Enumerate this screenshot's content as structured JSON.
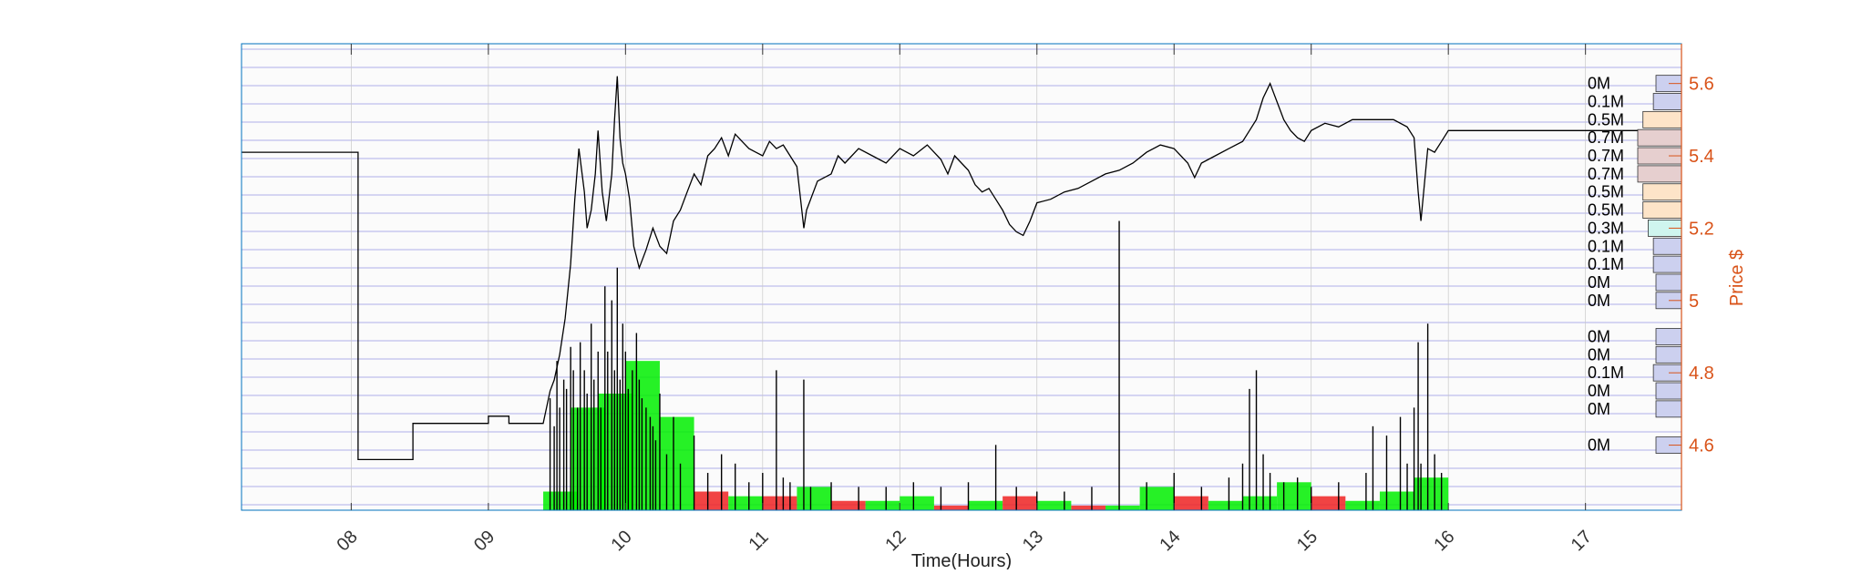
{
  "chart_data": {
    "type": "line",
    "title": "",
    "xlabel": "Time(Hours)",
    "ylabel": "Price $",
    "x_ticks": [
      "08",
      "09",
      "10",
      "11",
      "12",
      "13",
      "14",
      "15",
      "16",
      "17"
    ],
    "y_ticks": [
      "4.6",
      "4.8",
      "5",
      "5.2",
      "5.4",
      "5.6"
    ],
    "xlim": [
      7.2,
      17.7
    ],
    "ylim": [
      4.42,
      5.71
    ],
    "grid": true,
    "colors": {
      "price": "#000000",
      "volume_up": "#00ee00",
      "volume_down": "#ee2222",
      "axis_right": "#d95319",
      "axis_left": "#0072bd",
      "grid_h": "#3f3fd0",
      "profile_low": "#ccd0ef",
      "profile_mid": "#fde4c8",
      "profile_high": "#e6cfcf",
      "profile_cyan": "#cff5ef"
    },
    "price_series": {
      "name": "",
      "x": [
        7.2,
        8.05,
        8.05,
        8.45,
        8.45,
        9.0,
        9.0,
        9.15,
        9.15,
        9.4,
        9.45,
        9.48,
        9.52,
        9.56,
        9.6,
        9.63,
        9.66,
        9.7,
        9.72,
        9.75,
        9.78,
        9.8,
        9.83,
        9.86,
        9.9,
        9.92,
        9.94,
        9.96,
        9.98,
        10.0,
        10.03,
        10.06,
        10.1,
        10.15,
        10.2,
        10.25,
        10.3,
        10.35,
        10.4,
        10.45,
        10.5,
        10.55,
        10.6,
        10.65,
        10.7,
        10.75,
        10.8,
        10.85,
        10.9,
        10.95,
        11.0,
        11.05,
        11.1,
        11.15,
        11.2,
        11.25,
        11.3,
        11.32,
        11.35,
        11.4,
        11.5,
        11.55,
        11.6,
        11.7,
        11.8,
        11.9,
        12.0,
        12.1,
        12.2,
        12.3,
        12.35,
        12.4,
        12.45,
        12.5,
        12.55,
        12.6,
        12.65,
        12.7,
        12.75,
        12.8,
        12.85,
        12.9,
        12.95,
        13.0,
        13.1,
        13.2,
        13.3,
        13.4,
        13.5,
        13.6,
        13.7,
        13.8,
        13.9,
        14.0,
        14.1,
        14.15,
        14.2,
        14.3,
        14.4,
        14.5,
        14.55,
        14.6,
        14.65,
        14.7,
        14.75,
        14.8,
        14.85,
        14.9,
        14.95,
        15.0,
        15.1,
        15.2,
        15.3,
        15.4,
        15.5,
        15.6,
        15.7,
        15.75,
        15.78,
        15.8,
        15.85,
        15.9,
        15.95,
        16.0,
        17.7
      ],
      "y": [
        5.41,
        5.41,
        4.56,
        4.56,
        4.66,
        4.66,
        4.68,
        4.68,
        4.66,
        4.66,
        4.75,
        4.78,
        4.85,
        4.95,
        5.1,
        5.28,
        5.42,
        5.3,
        5.2,
        5.25,
        5.35,
        5.47,
        5.3,
        5.22,
        5.35,
        5.5,
        5.62,
        5.45,
        5.38,
        5.35,
        5.28,
        5.15,
        5.09,
        5.14,
        5.2,
        5.15,
        5.13,
        5.22,
        5.25,
        5.3,
        5.35,
        5.32,
        5.4,
        5.42,
        5.45,
        5.4,
        5.46,
        5.44,
        5.42,
        5.41,
        5.4,
        5.44,
        5.42,
        5.43,
        5.4,
        5.37,
        5.2,
        5.25,
        5.28,
        5.33,
        5.35,
        5.4,
        5.38,
        5.42,
        5.4,
        5.38,
        5.42,
        5.4,
        5.43,
        5.39,
        5.35,
        5.4,
        5.38,
        5.36,
        5.32,
        5.3,
        5.31,
        5.28,
        5.25,
        5.21,
        5.19,
        5.18,
        5.22,
        5.27,
        5.28,
        5.3,
        5.31,
        5.33,
        5.35,
        5.36,
        5.38,
        5.41,
        5.43,
        5.42,
        5.38,
        5.34,
        5.38,
        5.4,
        5.42,
        5.44,
        5.47,
        5.5,
        5.56,
        5.6,
        5.55,
        5.5,
        5.47,
        5.45,
        5.44,
        5.47,
        5.49,
        5.48,
        5.5,
        5.5,
        5.5,
        5.5,
        5.48,
        5.45,
        5.3,
        5.22,
        5.42,
        5.41,
        5.44,
        5.47,
        5.47
      ]
    },
    "volume_bars_fine": {
      "x": [
        9.45,
        9.48,
        9.5,
        9.52,
        9.55,
        9.57,
        9.6,
        9.62,
        9.65,
        9.67,
        9.7,
        9.72,
        9.75,
        9.77,
        9.8,
        9.82,
        9.85,
        9.87,
        9.9,
        9.92,
        9.94,
        9.96,
        9.98,
        10.0,
        10.02,
        10.05,
        10.08,
        10.1,
        10.12,
        10.15,
        10.18,
        10.2,
        10.22,
        10.25,
        10.3,
        10.35,
        10.4,
        10.5,
        10.6,
        10.7,
        10.8,
        10.9,
        11.0,
        11.1,
        11.15,
        11.2,
        11.3,
        11.35,
        11.5,
        11.7,
        11.9,
        12.1,
        12.3,
        12.5,
        12.7,
        12.85,
        13.0,
        13.2,
        13.4,
        13.6,
        13.8,
        14.0,
        14.2,
        14.4,
        14.5,
        14.55,
        14.6,
        14.65,
        14.7,
        14.8,
        14.9,
        15.0,
        15.2,
        15.4,
        15.45,
        15.55,
        15.65,
        15.7,
        15.75,
        15.78,
        15.8,
        15.85,
        15.9,
        15.95
      ],
      "y": [
        0.24,
        0.18,
        0.32,
        0.22,
        0.28,
        0.26,
        0.35,
        0.3,
        0.22,
        0.36,
        0.3,
        0.25,
        0.4,
        0.28,
        0.34,
        0.22,
        0.48,
        0.34,
        0.45,
        0.3,
        0.52,
        0.28,
        0.4,
        0.34,
        0.26,
        0.3,
        0.38,
        0.28,
        0.24,
        0.22,
        0.2,
        0.18,
        0.15,
        0.25,
        0.12,
        0.2,
        0.1,
        0.16,
        0.08,
        0.12,
        0.1,
        0.06,
        0.08,
        0.3,
        0.07,
        0.06,
        0.28,
        0.05,
        0.06,
        0.05,
        0.05,
        0.06,
        0.05,
        0.06,
        0.14,
        0.05,
        0.04,
        0.04,
        0.05,
        0.62,
        0.06,
        0.08,
        0.05,
        0.07,
        0.1,
        0.26,
        0.3,
        0.12,
        0.08,
        0.06,
        0.07,
        0.05,
        0.06,
        0.08,
        0.18,
        0.16,
        0.2,
        0.1,
        0.22,
        0.36,
        0.1,
        0.4,
        0.12,
        0.08
      ]
    },
    "volume_bars_coarse": {
      "x": [
        9.4,
        9.6,
        9.8,
        10.0,
        10.25,
        10.5,
        10.75,
        11.0,
        11.25,
        11.5,
        11.75,
        12.0,
        12.25,
        12.5,
        12.75,
        13.0,
        13.25,
        13.5,
        13.75,
        14.0,
        14.25,
        14.5,
        14.75,
        15.0,
        15.25,
        15.5,
        15.75
      ],
      "y": [
        0.04,
        0.22,
        0.25,
        0.32,
        0.2,
        0.04,
        0.03,
        0.03,
        0.05,
        0.02,
        0.02,
        0.03,
        0.01,
        0.02,
        0.03,
        0.02,
        0.01,
        0.01,
        0.05,
        0.03,
        0.02,
        0.03,
        0.06,
        0.03,
        0.02,
        0.04,
        0.07
      ],
      "direction": [
        "up",
        "up",
        "up",
        "up",
        "up",
        "down",
        "up",
        "down",
        "up",
        "down",
        "up",
        "up",
        "down",
        "up",
        "down",
        "up",
        "down",
        "up",
        "up",
        "down",
        "up",
        "up",
        "up",
        "down",
        "up",
        "up",
        "up"
      ]
    },
    "volume_profile": [
      {
        "price": 5.6,
        "label": "0M",
        "value": 0.0,
        "tier": "low"
      },
      {
        "price": 5.55,
        "label": "0.1M",
        "value": 0.1,
        "tier": "low"
      },
      {
        "price": 5.5,
        "label": "0.5M",
        "value": 0.5,
        "tier": "mid"
      },
      {
        "price": 5.45,
        "label": "0.7M",
        "value": 0.7,
        "tier": "high"
      },
      {
        "price": 5.4,
        "label": "0.7M",
        "value": 0.7,
        "tier": "high"
      },
      {
        "price": 5.35,
        "label": "0.7M",
        "value": 0.7,
        "tier": "high"
      },
      {
        "price": 5.3,
        "label": "0.5M",
        "value": 0.5,
        "tier": "mid"
      },
      {
        "price": 5.25,
        "label": "0.5M",
        "value": 0.5,
        "tier": "mid"
      },
      {
        "price": 5.2,
        "label": "0.3M",
        "value": 0.3,
        "tier": "cyan"
      },
      {
        "price": 5.15,
        "label": "0.1M",
        "value": 0.1,
        "tier": "low"
      },
      {
        "price": 5.1,
        "label": "0.1M",
        "value": 0.1,
        "tier": "low"
      },
      {
        "price": 5.05,
        "label": "0M",
        "value": 0.0,
        "tier": "low"
      },
      {
        "price": 5.0,
        "label": "0M",
        "value": 0.0,
        "tier": "low"
      },
      {
        "price": 4.9,
        "label": "0M",
        "value": 0.0,
        "tier": "low"
      },
      {
        "price": 4.85,
        "label": "0M",
        "value": 0.0,
        "tier": "low"
      },
      {
        "price": 4.8,
        "label": "0.1M",
        "value": 0.1,
        "tier": "low"
      },
      {
        "price": 4.75,
        "label": "0M",
        "value": 0.0,
        "tier": "low"
      },
      {
        "price": 4.7,
        "label": "0M",
        "value": 0.0,
        "tier": "low"
      },
      {
        "price": 4.6,
        "label": "0M",
        "value": 0.0,
        "tier": "low"
      }
    ]
  }
}
